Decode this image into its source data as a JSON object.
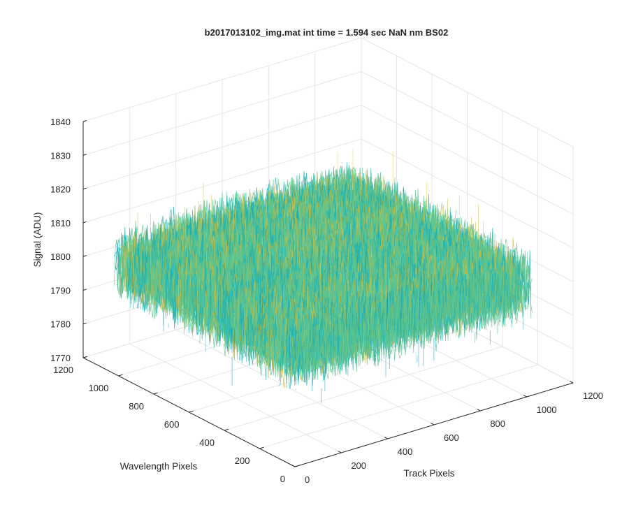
{
  "chart_data": {
    "type": "surface",
    "title": "b2017013102_img.mat int time = 1.594 sec  NaN nm BS02",
    "xlabel": "Track Pixels",
    "ylabel": "Wavelength Pixels",
    "zlabel": "Signal (ADU)",
    "xlim": [
      0,
      1200
    ],
    "ylim": [
      0,
      1200
    ],
    "zlim": [
      1770,
      1840
    ],
    "xticks": [
      "0",
      "200",
      "400",
      "600",
      "800",
      "1000",
      "1200"
    ],
    "yticks": [
      "0",
      "200",
      "400",
      "600",
      "800",
      "1000",
      "1200"
    ],
    "zticks": [
      "1770",
      "1780",
      "1790",
      "1800",
      "1810",
      "1820",
      "1830",
      "1840"
    ],
    "surface": {
      "x_range": [
        0,
        1024
      ],
      "y_range": [
        0,
        1024
      ],
      "base_level": 1802,
      "noise_amplitude": 12,
      "z_min_observed": 1775,
      "z_max_observed": 1825
    },
    "colormap": [
      "#0072bd",
      "#0a93c8",
      "#1ab0b5",
      "#5ec48e",
      "#c9bd45",
      "#f0d338"
    ],
    "grid": true,
    "view": "3-d perspective"
  }
}
